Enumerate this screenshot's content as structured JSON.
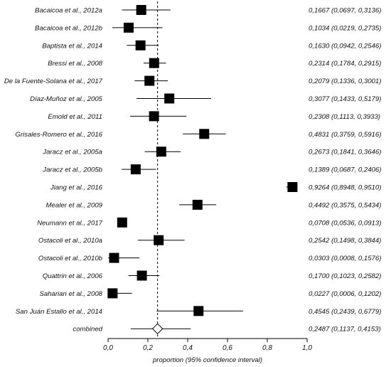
{
  "chart_data": {
    "type": "forest",
    "xlabel": "proportion (95% confidence interval)",
    "xlim": [
      0,
      1
    ],
    "xticks": [
      {
        "value": 0.0,
        "label": "0,0"
      },
      {
        "value": 0.2,
        "label": "0,2"
      },
      {
        "value": 0.4,
        "label": "0,4"
      },
      {
        "value": 0.6,
        "label": "0,6"
      },
      {
        "value": 0.8,
        "label": "0,8"
      },
      {
        "value": 1.0,
        "label": "1,0"
      }
    ],
    "reference_line": 0.2487,
    "studies": [
      {
        "label": "Bacaicoa et al., 2012a",
        "estimate": 0.1667,
        "lower": 0.0697,
        "upper": 0.3136,
        "ci_text": "0,1667 (0,0697, 0,3136)"
      },
      {
        "label": "Bacaicoa et al., 2012b",
        "estimate": 0.1034,
        "lower": 0.0219,
        "upper": 0.2735,
        "ci_text": "0,1034 (0,0219, 0,2735)"
      },
      {
        "label": "Baptista et al., 2014",
        "estimate": 0.163,
        "lower": 0.0942,
        "upper": 0.2546,
        "ci_text": "0,1630 (0,0942, 0,2546)"
      },
      {
        "label": "Bressi et al., 2008",
        "estimate": 0.2314,
        "lower": 0.1784,
        "upper": 0.2915,
        "ci_text": "0,2314 (0,1784, 0,2915)"
      },
      {
        "label": "De la Fuente-Solana et al., 2017",
        "estimate": 0.2079,
        "lower": 0.1336,
        "upper": 0.3001,
        "ci_text": "0,2079 (0,1336, 0,3001)"
      },
      {
        "label": "Díaz-Muñoz et al., 2005",
        "estimate": 0.3077,
        "lower": 0.1433,
        "upper": 0.5179,
        "ci_text": "0,3077 (0,1433, 0,5179)"
      },
      {
        "label": "Emold et al., 2011",
        "estimate": 0.2308,
        "lower": 0.1113,
        "upper": 0.3933,
        "ci_text": "0,2308 (0,1113, 0,3933)"
      },
      {
        "label": "Grisales-Romero et al., 2016",
        "estimate": 0.4831,
        "lower": 0.3759,
        "upper": 0.5916,
        "ci_text": "0,4831 (0,3759, 0,5916)"
      },
      {
        "label": "Jaracz et al., 2005a",
        "estimate": 0.2673,
        "lower": 0.1841,
        "upper": 0.3646,
        "ci_text": "0,2673 (0,1841, 0,3646)"
      },
      {
        "label": "Jaracz et al., 2005b",
        "estimate": 0.1389,
        "lower": 0.0687,
        "upper": 0.2406,
        "ci_text": "0,1389 (0,0687, 0,2406)"
      },
      {
        "label": "Jiang et al., 2016",
        "estimate": 0.9264,
        "lower": 0.8948,
        "upper": 0.951,
        "ci_text": "0,9264 (0,8948, 0,9510)"
      },
      {
        "label": "Mealer et al., 2009",
        "estimate": 0.4492,
        "lower": 0.3575,
        "upper": 0.5434,
        "ci_text": "0,4492 (0,3575, 0,5434)"
      },
      {
        "label": "Neumann et al., 2017",
        "estimate": 0.0708,
        "lower": 0.0536,
        "upper": 0.0913,
        "ci_text": "0,0708 (0,0536, 0,0913)"
      },
      {
        "label": "Ostacoli et al., 2010a",
        "estimate": 0.2542,
        "lower": 0.1498,
        "upper": 0.3844,
        "ci_text": "0,2542 (0,1498, 0,3844)"
      },
      {
        "label": "Ostacoli et al., 2010b",
        "estimate": 0.0303,
        "lower": 0.0008,
        "upper": 0.1576,
        "ci_text": "0,0303 (0,0008, 0,1576)"
      },
      {
        "label": "Quattrin et al., 2006",
        "estimate": 0.17,
        "lower": 0.1023,
        "upper": 0.2582,
        "ci_text": "0,1700 (0,1023, 0,2582)"
      },
      {
        "label": "Saharian et al., 2008",
        "estimate": 0.0227,
        "lower": 0.0006,
        "upper": 0.1202,
        "ci_text": "0,0227 (0,0006, 0,1202)"
      },
      {
        "label": "San Juán Estallo et al., 2014",
        "estimate": 0.4545,
        "lower": 0.2439,
        "upper": 0.6779,
        "ci_text": "0,4545 (0,2439, 0,6779)"
      }
    ],
    "combined": {
      "label": "combined",
      "estimate": 0.2487,
      "lower": 0.1137,
      "upper": 0.4153,
      "ci_text": "0,2487 (0,1137, 0,4153)"
    }
  }
}
